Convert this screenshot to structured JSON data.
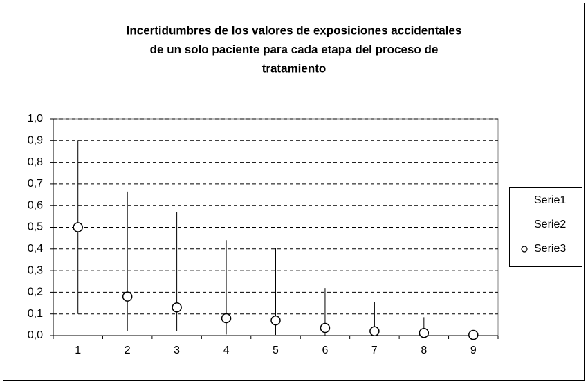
{
  "chart_data": {
    "type": "hilo",
    "title": [
      "Incertidumbres de los valores de exposiciones accidentales",
      "de un solo paciente para cada etapa del proceso de",
      "tratamiento"
    ],
    "categories": [
      "1",
      "2",
      "3",
      "4",
      "5",
      "6",
      "7",
      "8",
      "9"
    ],
    "series": [
      {
        "name": "Serie1",
        "color": "#000000",
        "values": [
          0.9,
          0.665,
          0.57,
          0.44,
          0.405,
          0.22,
          0.155,
          0.085,
          0.015
        ]
      },
      {
        "name": "Serie2",
        "color": "#000000",
        "values": [
          0.1,
          0.02,
          0.02,
          0.005,
          0.003,
          0,
          0,
          0,
          0
        ]
      },
      {
        "name": "Serie3",
        "color": "#000000",
        "marker": "circle",
        "values": [
          0.5,
          0.18,
          0.13,
          0.08,
          0.07,
          0.035,
          0.02,
          0.012,
          0.003
        ]
      }
    ],
    "ylim": [
      0,
      1
    ],
    "yticks": [
      {
        "value": 0,
        "label": "0,0"
      },
      {
        "value": 0.1,
        "label": "0,1"
      },
      {
        "value": 0.2,
        "label": "0,2"
      },
      {
        "value": 0.3,
        "label": "0,3"
      },
      {
        "value": 0.4,
        "label": "0,4"
      },
      {
        "value": 0.5,
        "label": "0,5"
      },
      {
        "value": 0.6,
        "label": "0,6"
      },
      {
        "value": 0.7,
        "label": "0,7"
      },
      {
        "value": 0.8,
        "label": "0,8"
      },
      {
        "value": 0.9,
        "label": "0,9"
      },
      {
        "value": 1,
        "label": "1,0"
      }
    ],
    "grid": true,
    "legend": "right"
  }
}
